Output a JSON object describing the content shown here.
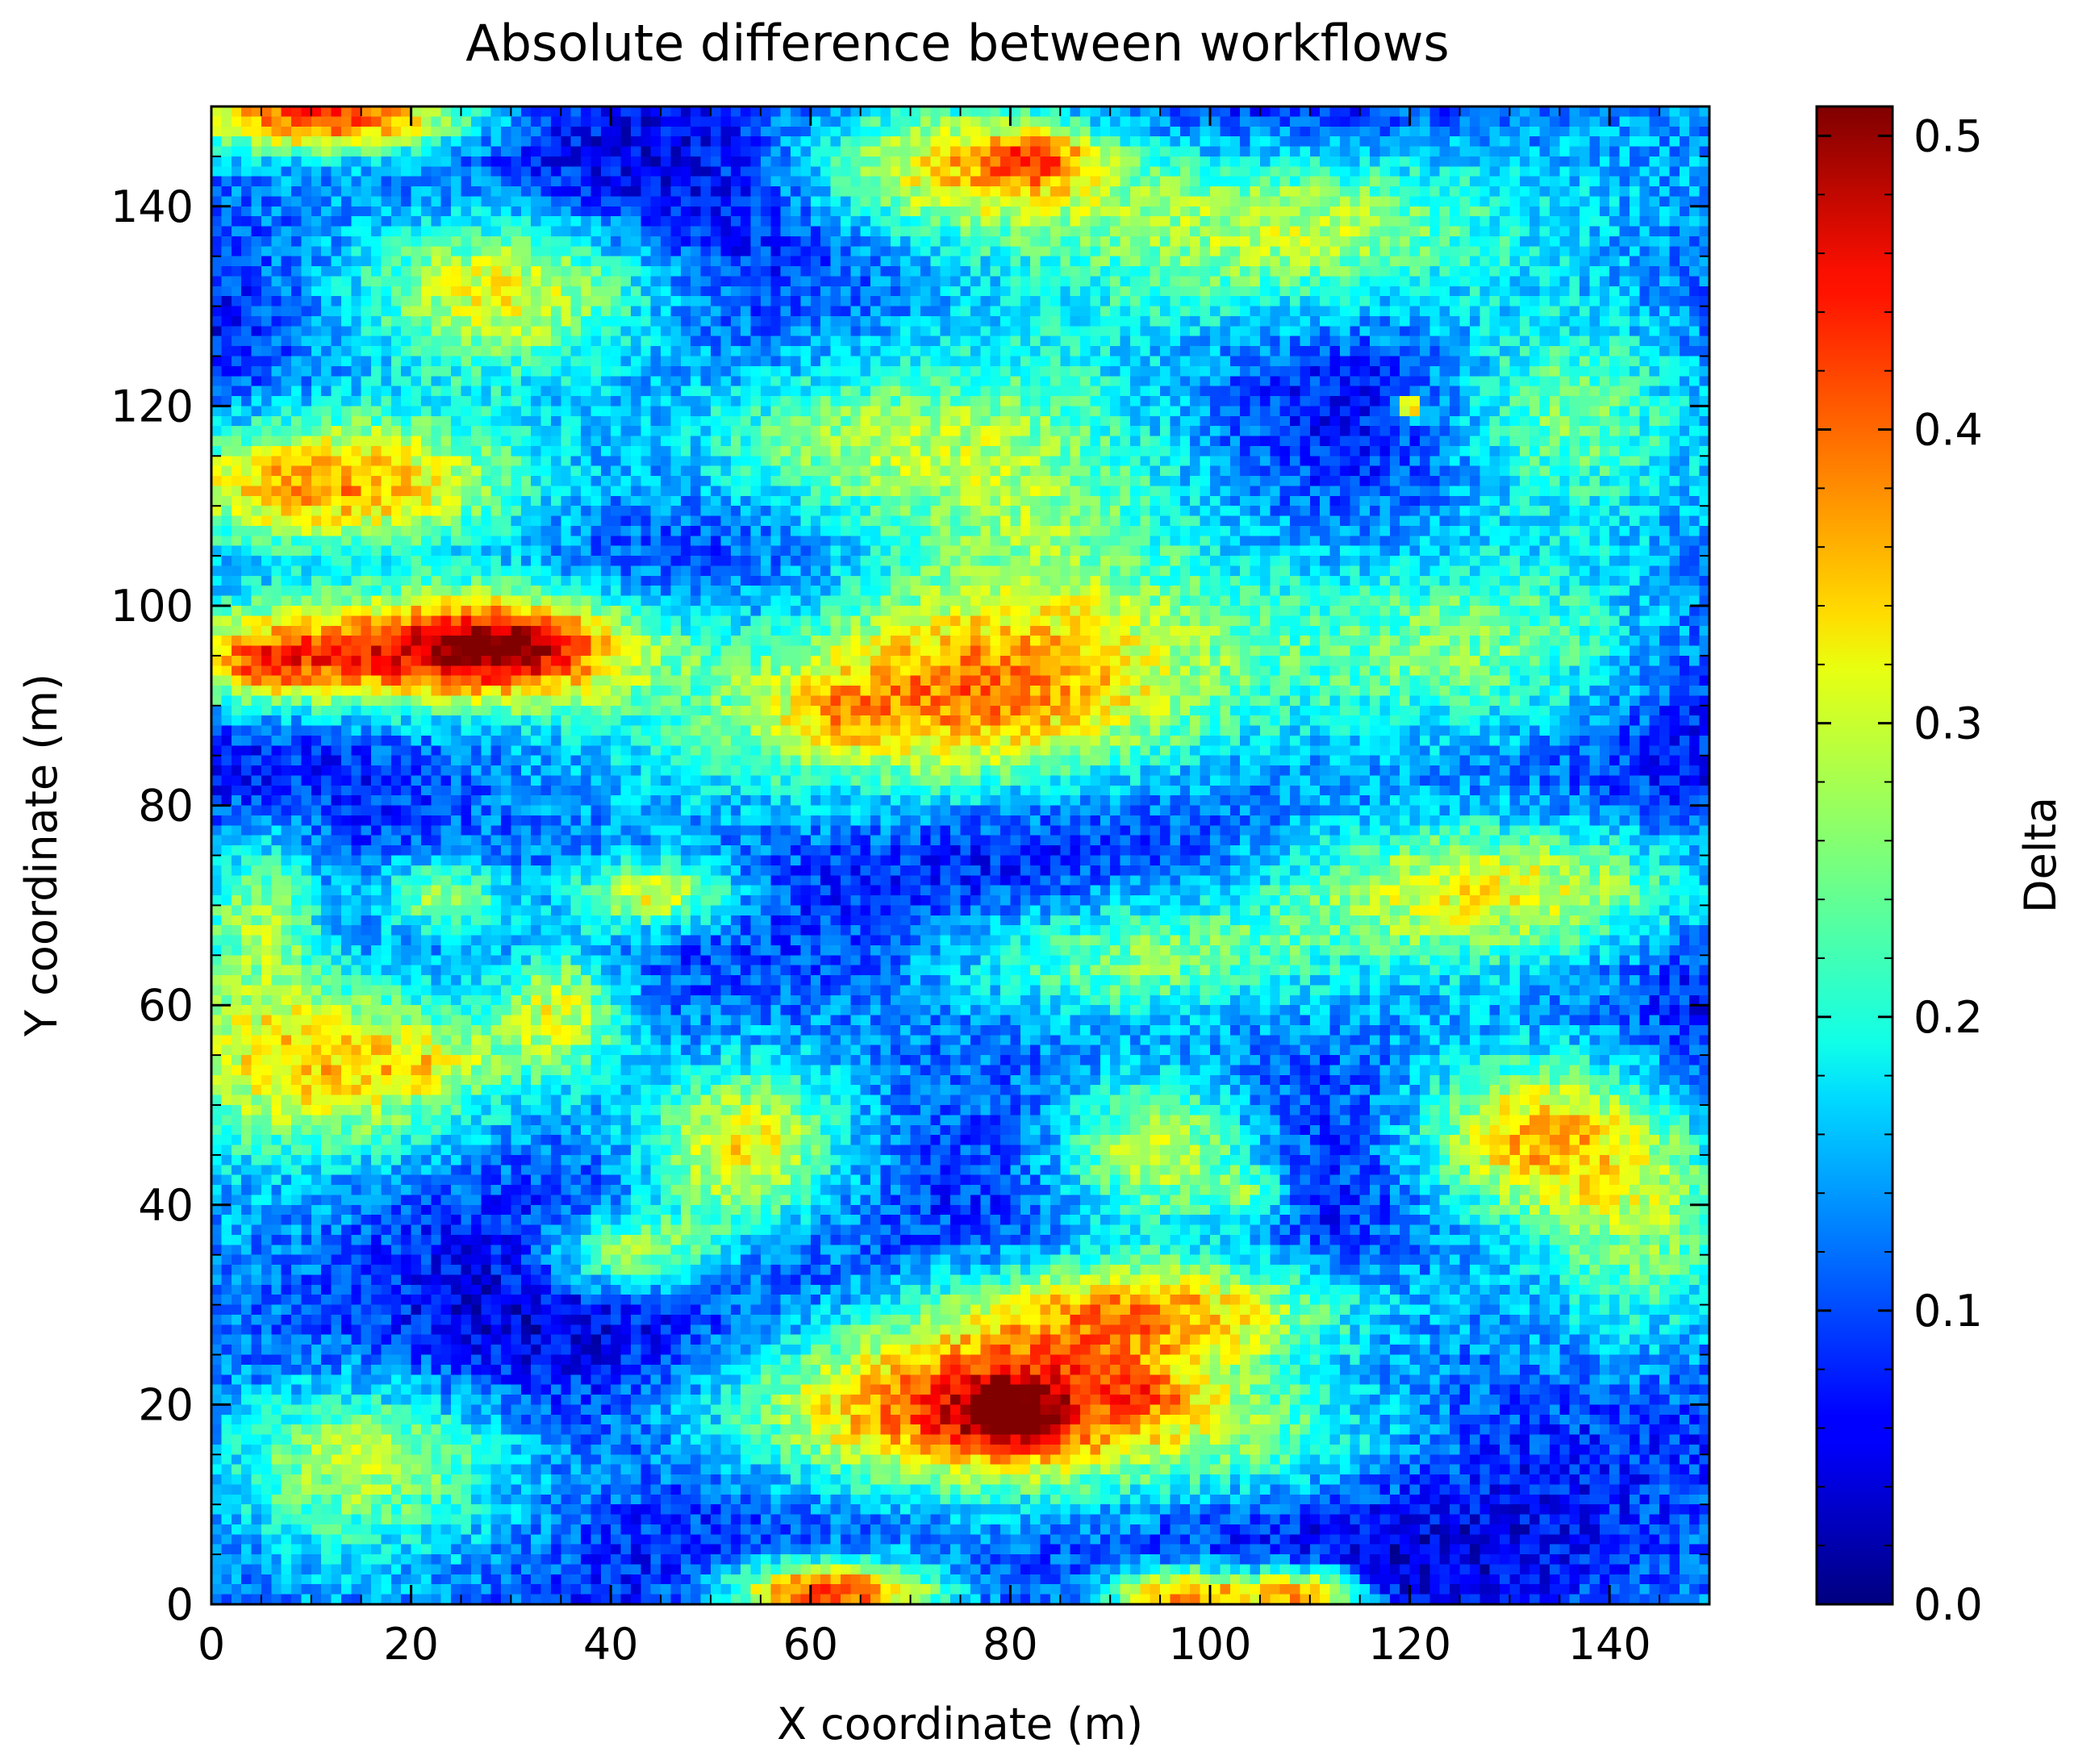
{
  "chart_data": {
    "type": "heatmap",
    "title": "Absolute difference between workflows",
    "xlabel": "X coordinate (m)",
    "ylabel": "Y coordinate (m)",
    "colorbar_label": "Delta",
    "colormap": "jet",
    "xlim": [
      0,
      150
    ],
    "ylim": [
      0,
      150
    ],
    "zlim": [
      0,
      0.51
    ],
    "x_ticks": [
      "0",
      "20",
      "40",
      "60",
      "80",
      "100",
      "120",
      "140"
    ],
    "y_ticks": [
      "0",
      "20",
      "40",
      "60",
      "80",
      "100",
      "120",
      "140"
    ],
    "colorbar_ticks": [
      "0.0",
      "0.1",
      "0.2",
      "0.3",
      "0.4",
      "0.5"
    ],
    "grid": false,
    "grid_resolution_m": 1,
    "features": [
      {
        "x": 12,
        "y": 149,
        "sx": 10,
        "sy": 2.5,
        "v": 0.3
      },
      {
        "x": 75,
        "y": 144,
        "sx": 12,
        "sy": 5,
        "v": 0.24
      },
      {
        "x": 83,
        "y": 145,
        "sx": 4,
        "sy": 2,
        "v": 0.12
      },
      {
        "x": 30,
        "y": 132,
        "sx": 12,
        "sy": 6,
        "v": 0.24
      },
      {
        "x": 110,
        "y": 138,
        "sx": 16,
        "sy": 7,
        "v": 0.2
      },
      {
        "x": 135,
        "y": 120,
        "sx": 10,
        "sy": 8,
        "v": 0.2
      },
      {
        "x": 10,
        "y": 112,
        "sx": 14,
        "sy": 5,
        "v": 0.26
      },
      {
        "x": 80,
        "y": 112,
        "sx": 14,
        "sy": 9,
        "v": 0.18
      },
      {
        "x": 60,
        "y": 116,
        "sx": 12,
        "sy": 6,
        "v": 0.14
      },
      {
        "x": 8,
        "y": 95,
        "sx": 14,
        "sy": 4.5,
        "v": 0.32
      },
      {
        "x": 30,
        "y": 96,
        "sx": 10,
        "sy": 4,
        "v": 0.3
      },
      {
        "x": 5,
        "y": 94,
        "sx": 4,
        "sy": 2,
        "v": 0.08
      },
      {
        "x": 30,
        "y": 96,
        "sx": 3,
        "sy": 1.5,
        "v": 0.06
      },
      {
        "x": 75,
        "y": 91,
        "sx": 18,
        "sy": 8,
        "v": 0.3
      },
      {
        "x": 63,
        "y": 89,
        "sx": 4,
        "sy": 2,
        "v": 0.06
      },
      {
        "x": 130,
        "y": 95,
        "sx": 14,
        "sy": 8,
        "v": 0.18
      },
      {
        "x": 130,
        "y": 72,
        "sx": 16,
        "sy": 5,
        "v": 0.2
      },
      {
        "x": 44,
        "y": 71,
        "sx": 6,
        "sy": 2.5,
        "v": 0.2
      },
      {
        "x": 23,
        "y": 71,
        "sx": 5,
        "sy": 3,
        "v": 0.18
      },
      {
        "x": 12,
        "y": 55,
        "sx": 14,
        "sy": 7,
        "v": 0.3
      },
      {
        "x": 22,
        "y": 54,
        "sx": 4,
        "sy": 2,
        "v": 0.06
      },
      {
        "x": 90,
        "y": 65,
        "sx": 14,
        "sy": 5,
        "v": 0.18
      },
      {
        "x": 95,
        "y": 45,
        "sx": 8,
        "sy": 6,
        "v": 0.26
      },
      {
        "x": 104,
        "y": 41,
        "sx": 3,
        "sy": 2,
        "v": 0.1
      },
      {
        "x": 53,
        "y": 45,
        "sx": 7,
        "sy": 6,
        "v": 0.2
      },
      {
        "x": 132,
        "y": 47,
        "sx": 9,
        "sy": 6,
        "v": 0.24
      },
      {
        "x": 42,
        "y": 35,
        "sx": 6,
        "sy": 3,
        "v": 0.2
      },
      {
        "x": 95,
        "y": 30,
        "sx": 14,
        "sy": 4,
        "v": 0.24
      },
      {
        "x": 78,
        "y": 20,
        "sx": 20,
        "sy": 6,
        "v": 0.3
      },
      {
        "x": 80,
        "y": 19,
        "sx": 4,
        "sy": 2.5,
        "v": 0.14
      },
      {
        "x": 94,
        "y": 21,
        "sx": 3,
        "sy": 1.5,
        "v": 0.06
      },
      {
        "x": 15,
        "y": 15,
        "sx": 12,
        "sy": 6,
        "v": 0.18
      },
      {
        "x": 62,
        "y": 1,
        "sx": 8,
        "sy": 2.5,
        "v": 0.38
      },
      {
        "x": 98,
        "y": 1,
        "sx": 6,
        "sy": 2,
        "v": 0.3
      },
      {
        "x": 110,
        "y": 1,
        "sx": 4,
        "sy": 2,
        "v": 0.26
      },
      {
        "x": 120,
        "y": 120,
        "sx": 0.7,
        "sy": 0.7,
        "v": 0.35
      },
      {
        "x": 145,
        "y": 40,
        "sx": 8,
        "sy": 10,
        "v": 0.12
      },
      {
        "x": 5,
        "y": 70,
        "sx": 5,
        "sy": 6,
        "v": 0.16
      },
      {
        "x": 35,
        "y": 60,
        "sx": 5,
        "sy": 5,
        "v": 0.18
      },
      {
        "x": 110,
        "y": 15,
        "sx": 12,
        "sy": 5,
        "v": 0.1
      }
    ],
    "base_value": 0.08,
    "noise_amplitude": 0.045
  }
}
